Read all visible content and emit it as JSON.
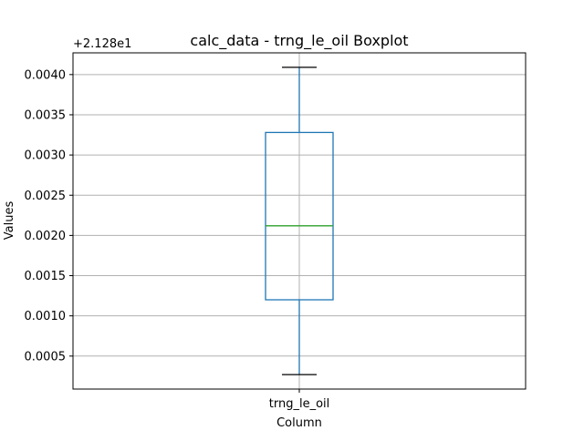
{
  "chart_data": {
    "type": "box",
    "title": "calc_data - trng_le_oil Boxplot",
    "xlabel": "Column",
    "ylabel": "Values",
    "offset_label": "+2.128e1",
    "y_offset": 21.28,
    "categories": [
      "trng_le_oil"
    ],
    "boxes": [
      {
        "name": "trng_le_oil",
        "whisker_low": 0.00027,
        "q1": 0.0012,
        "median": 0.00212,
        "q3": 0.00328,
        "whisker_high": 0.00409
      }
    ],
    "ylim": [
      9e-05,
      0.00427
    ],
    "yticks": [
      0.0005,
      0.001,
      0.0015,
      0.002,
      0.0025,
      0.003,
      0.0035,
      0.004
    ],
    "ytick_labels": [
      "0.0005",
      "0.0010",
      "0.0015",
      "0.0020",
      "0.0025",
      "0.0030",
      "0.0035",
      "0.0040"
    ],
    "grid": true,
    "colors": {
      "box": "#1f77b4",
      "whisker": "#1f77b4",
      "cap": "#000000",
      "median": "#2ca02c",
      "grid": "#b0b0b0"
    }
  }
}
